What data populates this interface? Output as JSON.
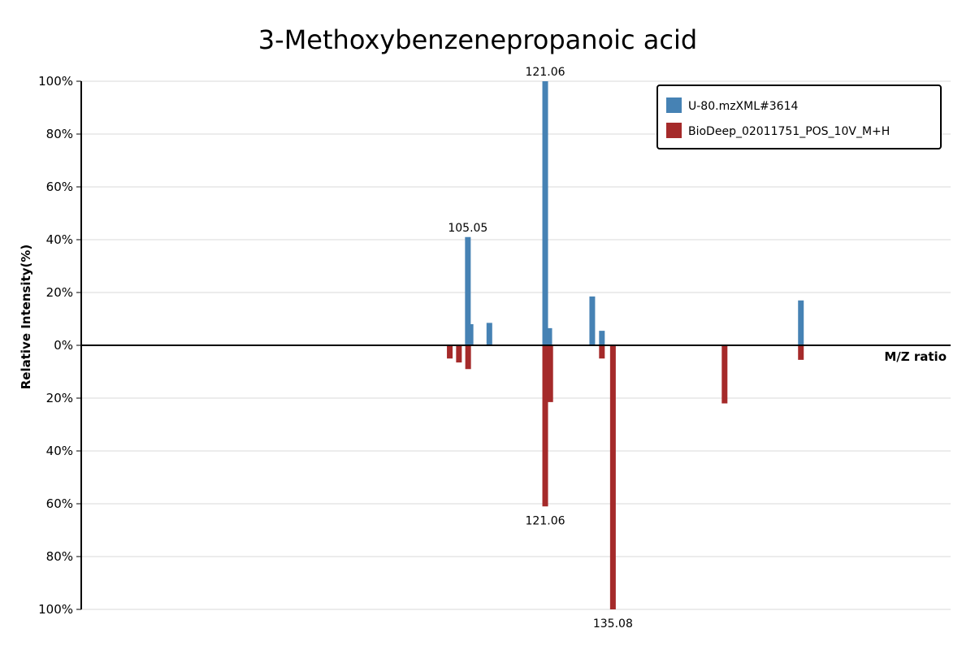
{
  "chart_data": {
    "type": "bar",
    "title": "3-Methoxybenzenepropanoic acid",
    "xlabel": "M/Z ratio",
    "ylabel": "Relative Intensity(%)",
    "xlim": [
      25,
      205
    ],
    "ylim_top": [
      0,
      100
    ],
    "ylim_bottom": [
      0,
      100
    ],
    "top_tick_labels": [
      "100%",
      "80%",
      "60%",
      "40%",
      "20%",
      "0%"
    ],
    "bottom_tick_labels": [
      "20%",
      "40%",
      "60%",
      "80%",
      "100%"
    ],
    "grid": true,
    "legend_position": "top-right",
    "series": [
      {
        "name": "U-80.mzXML#3614",
        "color": "#4682b4",
        "direction": "up",
        "peaks": [
          {
            "mz": 105.05,
            "intensity": 41
          },
          {
            "mz": 105.6,
            "intensity": 8
          },
          {
            "mz": 109.5,
            "intensity": 8.5
          },
          {
            "mz": 121.06,
            "intensity": 100
          },
          {
            "mz": 121.9,
            "intensity": 6.5
          },
          {
            "mz": 130.8,
            "intensity": 18.5
          },
          {
            "mz": 132.8,
            "intensity": 5.5
          },
          {
            "mz": 174.0,
            "intensity": 17
          }
        ],
        "labels": [
          {
            "mz": 105.05,
            "text": "105.05"
          },
          {
            "mz": 121.06,
            "text": "121.06"
          }
        ]
      },
      {
        "name": "BioDeep_02011751_POS_10V_M+H",
        "color": "#a52a2a",
        "direction": "down",
        "peaks": [
          {
            "mz": 101.3,
            "intensity": 5
          },
          {
            "mz": 103.2,
            "intensity": 6.5
          },
          {
            "mz": 105.1,
            "intensity": 9
          },
          {
            "mz": 121.06,
            "intensity": 61
          },
          {
            "mz": 122.1,
            "intensity": 21.5
          },
          {
            "mz": 135.08,
            "intensity": 100
          },
          {
            "mz": 132.8,
            "intensity": 5
          },
          {
            "mz": 158.2,
            "intensity": 22
          },
          {
            "mz": 174.0,
            "intensity": 5.5
          }
        ],
        "labels": [
          {
            "mz": 121.06,
            "text": "121.06"
          },
          {
            "mz": 135.08,
            "text": "135.08"
          }
        ]
      }
    ]
  }
}
